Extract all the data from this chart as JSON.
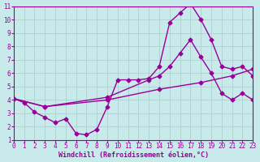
{
  "background_color": "#c8eaea",
  "grid_color": "#b0d0d0",
  "line_color": "#990099",
  "line_width": 1.0,
  "marker": "D",
  "marker_size": 2.5,
  "xlabel": "Windchill (Refroidissement éolien,°C)",
  "xlabel_fontsize": 6.0,
  "tick_fontsize": 5.5,
  "xlim": [
    0,
    23
  ],
  "ylim": [
    1,
    11
  ],
  "xticks": [
    0,
    1,
    2,
    3,
    4,
    5,
    6,
    7,
    8,
    9,
    10,
    11,
    12,
    13,
    14,
    15,
    16,
    17,
    18,
    19,
    20,
    21,
    22,
    23
  ],
  "yticks": [
    1,
    2,
    3,
    4,
    5,
    6,
    7,
    8,
    9,
    10,
    11
  ],
  "line1_x": [
    0,
    1,
    2,
    3,
    4,
    5,
    6,
    7,
    8,
    9,
    10,
    11,
    12,
    13,
    14,
    15,
    16,
    17,
    18,
    19,
    20,
    21,
    22,
    23
  ],
  "line1_y": [
    4.1,
    3.8,
    3.1,
    2.7,
    2.3,
    2.6,
    1.5,
    1.4,
    1.8,
    3.5,
    5.5,
    5.5,
    5.5,
    5.6,
    6.5,
    9.8,
    10.5,
    11.2,
    10.0,
    8.5,
    6.5,
    6.3,
    6.5,
    5.8
  ],
  "line2_x": [
    0,
    3,
    9,
    13,
    14,
    15,
    16,
    17,
    18,
    19,
    20,
    21,
    22,
    23
  ],
  "line2_y": [
    4.1,
    3.5,
    4.2,
    5.5,
    5.8,
    6.5,
    7.5,
    8.5,
    7.2,
    6.0,
    4.5,
    4.0,
    4.5,
    4.0
  ],
  "line3_x": [
    0,
    3,
    9,
    14,
    18,
    21,
    23
  ],
  "line3_y": [
    4.1,
    3.5,
    4.0,
    4.8,
    5.3,
    5.8,
    6.3
  ]
}
